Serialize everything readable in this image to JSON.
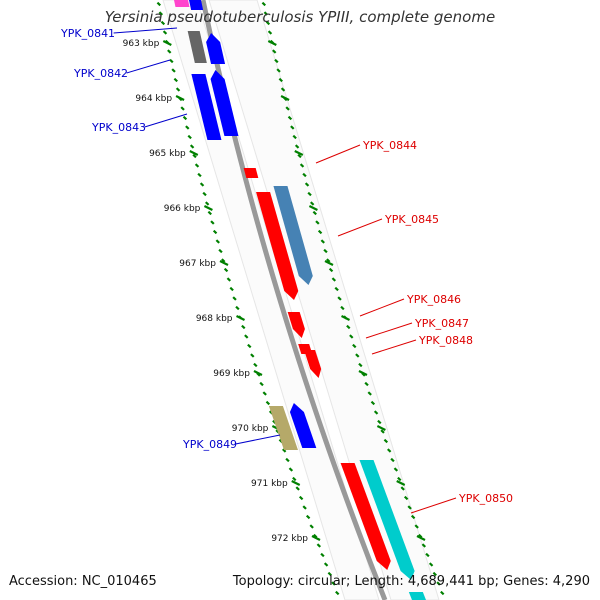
{
  "title": "Yersinia pseudotuberculosis YPIII, complete genome",
  "footer": {
    "accession": "Accession: NC_010465",
    "summary": "Topology: circular; Length: 4,689,441 bp; Genes: 4,290"
  },
  "colors": {
    "backbone": "#999999",
    "tick": "#008000",
    "forward_label": "#0000cc",
    "reverse_label": "#dd0000",
    "blue": "#0000ff",
    "red": "#ff0000",
    "steelblue": "#4682b4",
    "cyan": "#00cccc",
    "khaki": "#b5a969",
    "gray": "#666666",
    "pink": "#ff44cc"
  },
  "scale_labels": [
    "963 kbp",
    "964 kbp",
    "965 kbp",
    "966 kbp",
    "967 kbp",
    "968 kbp",
    "969 kbp",
    "970 kbp",
    "971 kbp",
    "972 kbp"
  ],
  "gene_labels": [
    {
      "text": "YPK_0841",
      "strand": "forward"
    },
    {
      "text": "YPK_0842",
      "strand": "forward"
    },
    {
      "text": "YPK_0843",
      "strand": "forward"
    },
    {
      "text": "YPK_0844",
      "strand": "reverse"
    },
    {
      "text": "YPK_0845",
      "strand": "reverse"
    },
    {
      "text": "YPK_0846",
      "strand": "reverse"
    },
    {
      "text": "YPK_0847",
      "strand": "reverse"
    },
    {
      "text": "YPK_0848",
      "strand": "reverse"
    },
    {
      "text": "YPK_0849",
      "strand": "forward"
    },
    {
      "text": "YPK_0850",
      "strand": "reverse"
    }
  ]
}
